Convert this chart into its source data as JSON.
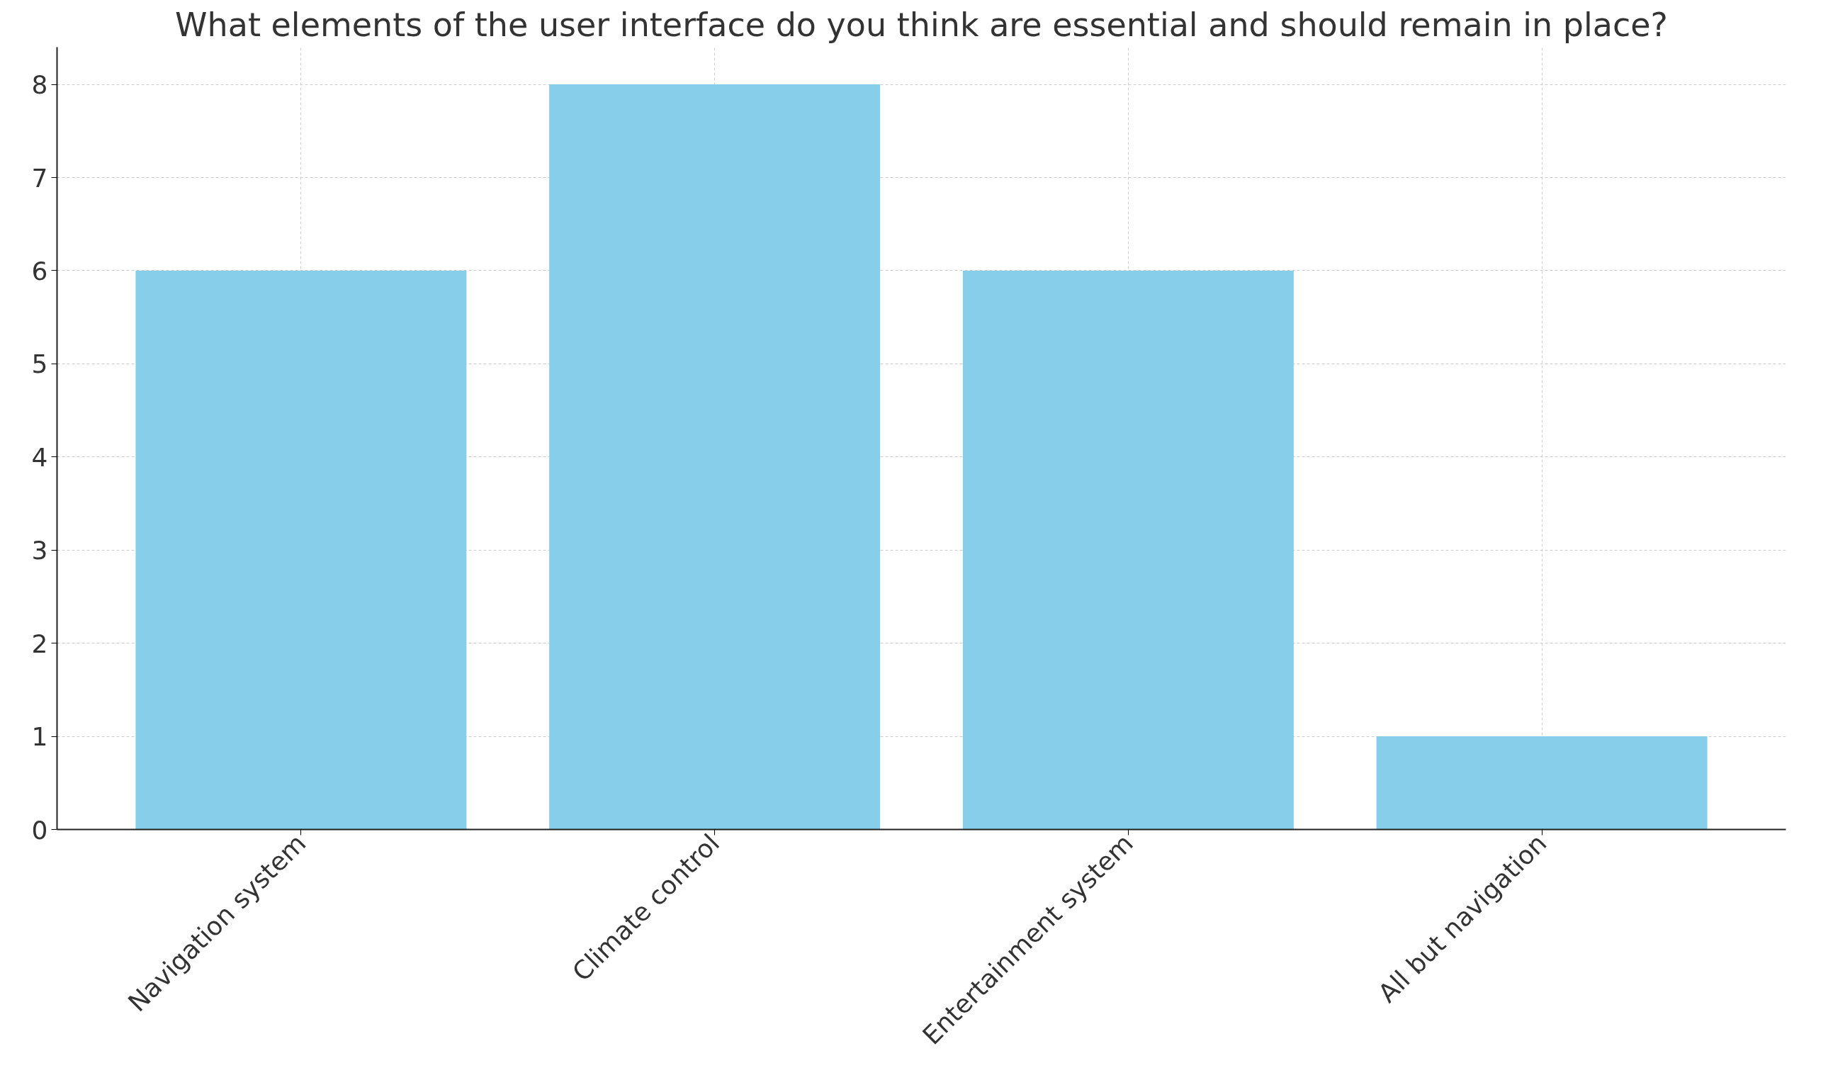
{
  "chart_data": {
    "type": "bar",
    "title": "What elements of the user interface do you think are essential and should remain in place?",
    "categories": [
      "Navigation system",
      "Climate control",
      "Entertainment system",
      "All but navigation"
    ],
    "values": [
      6,
      8,
      6,
      1
    ],
    "color": "#87ceeb",
    "ylim": [
      0,
      8.4
    ],
    "yticks": [
      0,
      1,
      2,
      3,
      4,
      5,
      6,
      7,
      8
    ],
    "grid": true
  }
}
